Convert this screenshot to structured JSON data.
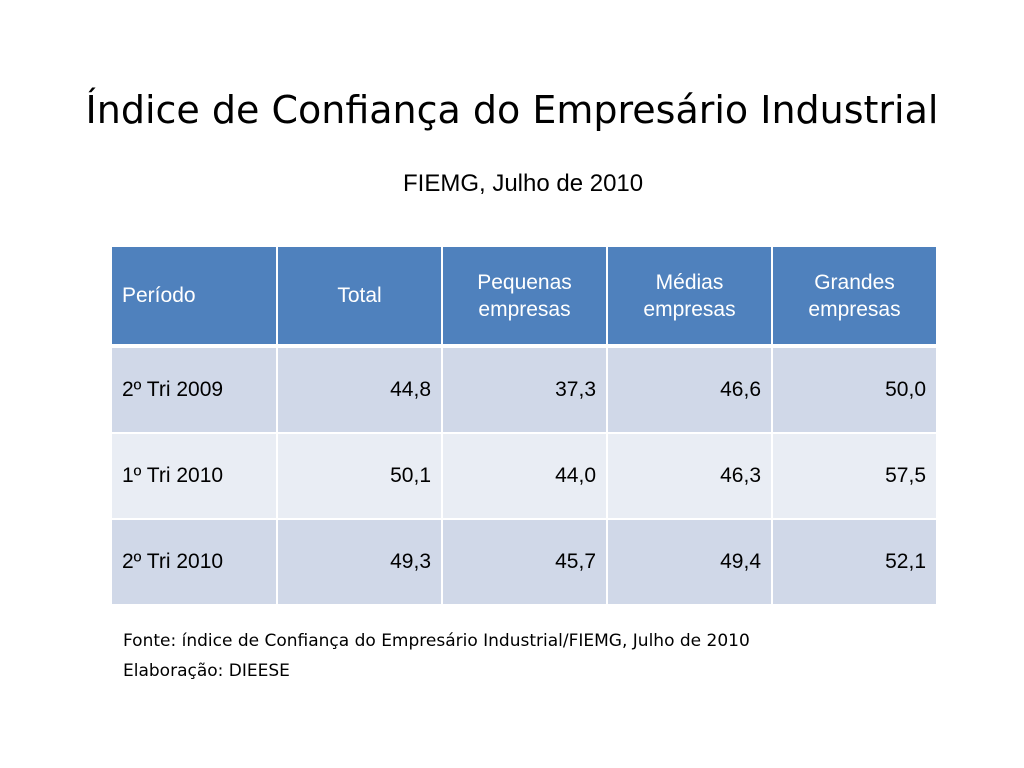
{
  "slide": {
    "title": "Índice de Confiança do Empresário Industrial",
    "subtitle": "FIEMG, Julho de 2010"
  },
  "table": {
    "headers": [
      "Período",
      "Total",
      "Pequenas empresas",
      "Médias empresas",
      "Grandes empresas"
    ],
    "rows": [
      [
        "2º Tri 2009",
        "44,8",
        "37,3",
        "46,6",
        "50,0"
      ],
      [
        "1º Tri 2010",
        "50,1",
        "44,0",
        "46,3",
        "57,5"
      ],
      [
        "2º Tri 2010",
        "49,3",
        "45,7",
        "49,4",
        "52,1"
      ]
    ]
  },
  "source": {
    "line1": "Fonte: índice de Confiança do Empresário Industrial/FIEMG, Julho de 2010",
    "line2": "Elaboração: DIEESE"
  },
  "colors": {
    "header_background": "#4f81bd",
    "row_dark": "#d0d8e8",
    "row_light": "#e9edf4"
  }
}
